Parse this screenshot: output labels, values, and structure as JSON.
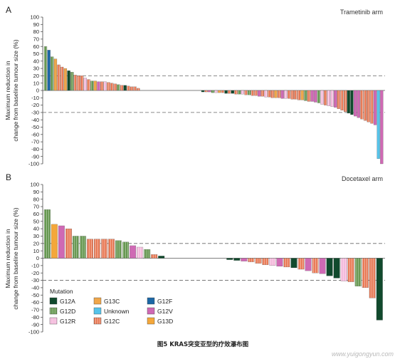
{
  "caption": "图5 KRAS突变亚型的疗效瀑布图",
  "watermark": "www.yuigongyun.com",
  "legend": {
    "title": "Mutation",
    "items": [
      {
        "name": "G12A",
        "color": "#114a2d",
        "pattern": "solid"
      },
      {
        "name": "G13C",
        "color": "#efa64a",
        "pattern": "solid"
      },
      {
        "name": "G12F",
        "color": "#1c67a5",
        "pattern": "solid"
      },
      {
        "name": "G12D",
        "color": "#5e9348",
        "pattern": "striped"
      },
      {
        "name": "Unknown",
        "color": "#55c3ea",
        "pattern": "solid"
      },
      {
        "name": "G12V",
        "color": "#cf69b4",
        "pattern": "solid"
      },
      {
        "name": "G12R",
        "color": "#f3b6da",
        "pattern": "striped"
      },
      {
        "name": "G12C",
        "color": "#e8744f",
        "pattern": "striped"
      },
      {
        "name": "G13D",
        "color": "#f4a73a",
        "pattern": "solid"
      }
    ]
  },
  "chart_data": [
    {
      "type": "bar",
      "panel_label": "A",
      "arm_label": "Trametinib arm",
      "ylabel_line1": "Maximum reduction in",
      "ylabel_line2": "change from baseline tumour size (%)",
      "ylim": [
        -100,
        100
      ],
      "yticks": [
        100,
        90,
        80,
        70,
        60,
        50,
        40,
        30,
        20,
        10,
        0,
        -10,
        -20,
        -30,
        -40,
        -50,
        -60,
        -70,
        -80,
        -90,
        -100
      ],
      "reference_lines": [
        20,
        -30
      ],
      "values": [
        60,
        55,
        46,
        43,
        35,
        32,
        30,
        27,
        25,
        21,
        20,
        20,
        17,
        15,
        13,
        13,
        12,
        12,
        12,
        11,
        10,
        9,
        8,
        7,
        7,
        6,
        5,
        5,
        3,
        -2,
        -2,
        -2,
        -3,
        -3,
        -3,
        -3,
        -4,
        -4,
        -4,
        -5,
        -5,
        -5,
        -6,
        -6,
        -7,
        -7,
        -8,
        -8,
        -9,
        -9,
        -10,
        -10,
        -10,
        -11,
        -11,
        -11,
        -12,
        -12,
        -13,
        -13,
        -14,
        -15,
        -15,
        -16,
        -17,
        -19,
        -20,
        -21,
        -22,
        -23,
        -25,
        -27,
        -29,
        -31,
        -33,
        -35,
        -37,
        -39,
        -41,
        -43,
        -45,
        -47,
        -93,
        -100
      ],
      "mutations": [
        "G12D",
        "G12F",
        "G12D",
        "G13C",
        "G12C",
        "G12C",
        "G13C",
        "G12A",
        "G12D",
        "G12C",
        "G12C",
        "G12C",
        "G12R",
        "G12C",
        "G12D",
        "G13C",
        "G12V",
        "G12C",
        "G12R",
        "G12C",
        "G12C",
        "G12C",
        "G12D",
        "G12C",
        "G12A",
        "G12C",
        "G12C",
        "G12C",
        "G12C",
        "G12A",
        "G12C",
        "G12V",
        "G12D",
        "G12R",
        "G13C",
        "G12C",
        "G12A",
        "G12C",
        "G12A",
        "G12C",
        "G12D",
        "G12R",
        "G12C",
        "G12D",
        "G12C",
        "G12C",
        "G12V",
        "G12C",
        "G12R",
        "G12C",
        "G12C",
        "G13C",
        "G12C",
        "G12V",
        "G12R",
        "G12C",
        "G12C",
        "G12C",
        "G12C",
        "G13C",
        "G12D",
        "G12C",
        "G12V",
        "G12V",
        "G12D",
        "G12R",
        "G12C",
        "G12R",
        "G12R",
        "G12V",
        "G12C",
        "G12C",
        "G12C",
        "G12A",
        "G12A",
        "G12V",
        "G12V",
        "G12C",
        "G12C",
        "G12C",
        "G12C",
        "G12V",
        "Unknown",
        "G12V"
      ]
    },
    {
      "type": "bar",
      "panel_label": "B",
      "arm_label": "Docetaxel arm",
      "ylabel_line1": "Maximum reduction in",
      "ylabel_line2": "change from baseline tumour size (%)",
      "ylim": [
        -100,
        100
      ],
      "yticks": [
        100,
        90,
        80,
        70,
        60,
        50,
        40,
        30,
        20,
        10,
        0,
        -10,
        -20,
        -30,
        -40,
        -50,
        -60,
        -70,
        -80,
        -90,
        -100
      ],
      "reference_lines": [
        20,
        -30
      ],
      "values": [
        66,
        46,
        44,
        40,
        30,
        30,
        26,
        26,
        26,
        26,
        24,
        22,
        17,
        15,
        12,
        5,
        3,
        -2,
        -3,
        -4,
        -5,
        -7,
        -9,
        -10,
        -11,
        -12,
        -13,
        -15,
        -17,
        -20,
        -21,
        -24,
        -27,
        -31,
        -32,
        -38,
        -40,
        -54,
        -84
      ],
      "mutations": [
        "G12D",
        "G13D",
        "G12V",
        "G12C",
        "G12D",
        "G12D",
        "G12C",
        "G12C",
        "G12C",
        "G12C",
        "G12D",
        "G12D",
        "G12V",
        "G12R",
        "G12D",
        "G12C",
        "G12A",
        "G12A",
        "G12A",
        "G12V",
        "G12C",
        "G12C",
        "G12C",
        "G12R",
        "G12V",
        "G12C",
        "G12A",
        "G12C",
        "G12V",
        "G12C",
        "G12V",
        "G12A",
        "G12A",
        "G12R",
        "G12C",
        "G12D",
        "G12C",
        "G12C",
        "G12A"
      ]
    }
  ]
}
